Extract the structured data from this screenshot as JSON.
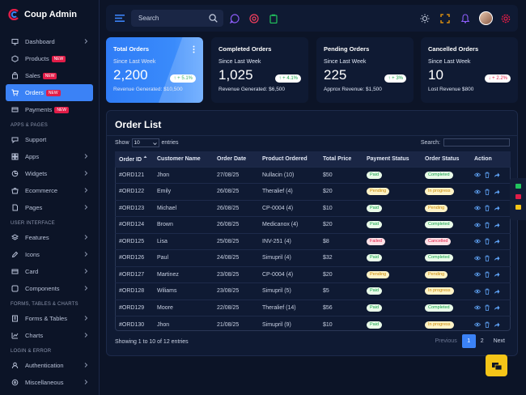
{
  "brand": {
    "name": "Coup Admin"
  },
  "sidebar": {
    "items": [
      {
        "label": "Dashboard",
        "icon": "monitor-icon",
        "chevron": true
      },
      {
        "label": "Products",
        "icon": "box-icon",
        "badge": "NEW"
      },
      {
        "label": "Sales",
        "icon": "bag-icon",
        "badge": "NEW"
      },
      {
        "label": "Orders",
        "icon": "cart-icon",
        "badge": "NEW",
        "active": true
      },
      {
        "label": "Payments",
        "icon": "card-icon",
        "badge": "NEW"
      }
    ],
    "sections": [
      {
        "title": "APPS & PAGES",
        "items": [
          {
            "label": "Support",
            "icon": "chat-icon"
          },
          {
            "label": "Apps",
            "icon": "grid-icon",
            "chevron": true
          },
          {
            "label": "Widgets",
            "icon": "widget-icon",
            "chevron": true
          },
          {
            "label": "Ecommerce",
            "icon": "shop-icon",
            "chevron": true
          },
          {
            "label": "Pages",
            "icon": "page-icon",
            "chevron": true
          }
        ]
      },
      {
        "title": "USER INTERFACE",
        "items": [
          {
            "label": "Features",
            "icon": "layers-icon",
            "chevron": true
          },
          {
            "label": "Icons",
            "icon": "pen-icon",
            "chevron": true
          },
          {
            "label": "Card",
            "icon": "card-icon",
            "chevron": true
          },
          {
            "label": "Components",
            "icon": "component-icon",
            "chevron": true
          }
        ]
      },
      {
        "title": "FORMS, TABLES & CHARTS",
        "items": [
          {
            "label": "Forms & Tables",
            "icon": "form-icon",
            "chevron": true
          },
          {
            "label": "Charts",
            "icon": "chart-icon",
            "chevron": true
          }
        ]
      },
      {
        "title": "LOGIN & ERROR",
        "items": [
          {
            "label": "Authentication",
            "icon": "user-icon",
            "chevron": true
          },
          {
            "label": "Miscellaneous",
            "icon": "misc-icon",
            "chevron": true
          }
        ]
      }
    ]
  },
  "topbar": {
    "search_placeholder": "Search"
  },
  "cards": [
    {
      "title": "Total Orders",
      "since": "Since Last Week",
      "value": "2,200",
      "change": "↑ + 5.1%",
      "direction": "up",
      "footer": "Revenue Generated: $10,500",
      "highlight": true
    },
    {
      "title": "Completed Orders",
      "since": "Since Last Week",
      "value": "1,025",
      "change": "↑ + 4.1%",
      "direction": "up",
      "footer": "Revenue Generated: $6,500"
    },
    {
      "title": "Pending Orders",
      "since": "Since Last Week",
      "value": "225",
      "change": "↑ + 3%",
      "direction": "up",
      "footer": "Approx Revenue: $1,500"
    },
    {
      "title": "Cancelled Orders",
      "since": "Since Last Week",
      "value": "10",
      "change": "↓ + 2.2%",
      "direction": "down",
      "footer": "Lost Revenue $800"
    }
  ],
  "orders": {
    "title": "Order List",
    "show_label": "Show",
    "entries_value": "10",
    "entries_label": "entries",
    "search_label": "Search:",
    "columns": [
      "Order ID",
      "Customer Name",
      "Order Date",
      "Product Ordered",
      "Total Price",
      "Payment Status",
      "Order Status",
      "Action"
    ],
    "rows": [
      {
        "id": "#ORD121",
        "customer": "Jhon",
        "date": "27/08/25",
        "product": "Nullacin (10)",
        "price": "$50",
        "payment": "Paid",
        "status": "Completed"
      },
      {
        "id": "#ORD122",
        "customer": "Emily",
        "date": "26/08/25",
        "product": "Theralief (4)",
        "price": "$20",
        "payment": "Pending",
        "status": "In progress"
      },
      {
        "id": "#ORD123",
        "customer": "Michael",
        "date": "26/08/25",
        "product": "CP-0004 (4)",
        "price": "$10",
        "payment": "Paid",
        "status": "Pending"
      },
      {
        "id": "#ORD124",
        "customer": "Brown",
        "date": "26/08/25",
        "product": "Medicanox (4)",
        "price": "$20",
        "payment": "Paid",
        "status": "Completed"
      },
      {
        "id": "#ORD125",
        "customer": "Lisa",
        "date": "25/08/25",
        "product": "INV-251 (4)",
        "price": "$8",
        "payment": "Failed",
        "status": "Cancelled"
      },
      {
        "id": "#ORD126",
        "customer": "Paul",
        "date": "24/08/25",
        "product": "Simupril (4)",
        "price": "$32",
        "payment": "Paid",
        "status": "Completed"
      },
      {
        "id": "#ORD127",
        "customer": "Martinez",
        "date": "23/08/25",
        "product": "CP-0004 (4)",
        "price": "$20",
        "payment": "Pending",
        "status": "Pending"
      },
      {
        "id": "#ORD128",
        "customer": "Wiliams",
        "date": "23/08/25",
        "product": "Simupril (5)",
        "price": "$5",
        "payment": "Paid",
        "status": "In progress"
      },
      {
        "id": "#ORD129",
        "customer": "Moore",
        "date": "22/08/25",
        "product": "Theralief (14)",
        "price": "$56",
        "payment": "Paid",
        "status": "Completed"
      },
      {
        "id": "#ORD130",
        "customer": "Jhon",
        "date": "21/08/25",
        "product": "Simupril (9)",
        "price": "$10",
        "payment": "Paid",
        "status": "In progress"
      }
    ],
    "showing": "Showing 1 to 10 of 12 entries",
    "pagination": {
      "prev": "Previous",
      "pages": [
        "1",
        "2"
      ],
      "current": "1",
      "next": "Next"
    }
  }
}
